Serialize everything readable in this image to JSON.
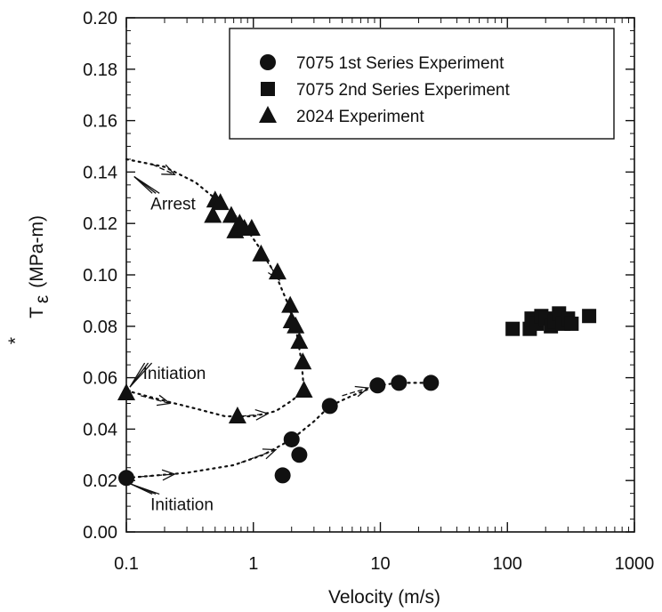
{
  "chart_data": {
    "type": "scatter",
    "xlabel": "Velocity (m/s)",
    "ylabel_main": "T",
    "ylabel_sub": "ε",
    "ylabel_sup": "*",
    "ylabel_unit": "(MPa-m)",
    "xscale": "log",
    "xlim": [
      0.1,
      1000
    ],
    "ylim": [
      0.0,
      0.2
    ],
    "xticks": [
      {
        "value": 0.1,
        "label": "0.1"
      },
      {
        "value": 1,
        "label": "1"
      },
      {
        "value": 10,
        "label": "10"
      },
      {
        "value": 100,
        "label": "100"
      },
      {
        "value": 1000,
        "label": "1000"
      }
    ],
    "yticks": [
      {
        "value": 0.0,
        "label": "0.00"
      },
      {
        "value": 0.02,
        "label": "0.02"
      },
      {
        "value": 0.04,
        "label": "0.04"
      },
      {
        "value": 0.06,
        "label": "0.06"
      },
      {
        "value": 0.08,
        "label": "0.08"
      },
      {
        "value": 0.1,
        "label": "0.10"
      },
      {
        "value": 0.12,
        "label": "0.12"
      },
      {
        "value": 0.14,
        "label": "0.14"
      },
      {
        "value": 0.16,
        "label": "0.16"
      },
      {
        "value": 0.18,
        "label": "0.18"
      },
      {
        "value": 0.2,
        "label": "0.20"
      }
    ],
    "grid": false,
    "legend_position": "top-right",
    "series": [
      {
        "name": "7075 1st Series Experiment",
        "marker": "circle",
        "points": [
          {
            "x": 0.1,
            "y": 0.021
          },
          {
            "x": 1.7,
            "y": 0.022
          },
          {
            "x": 2.0,
            "y": 0.036
          },
          {
            "x": 2.3,
            "y": 0.03
          },
          {
            "x": 4.0,
            "y": 0.049
          },
          {
            "x": 9.5,
            "y": 0.057
          },
          {
            "x": 14,
            "y": 0.058
          },
          {
            "x": 25,
            "y": 0.058
          }
        ]
      },
      {
        "name": "7075 2nd Series Experiment",
        "marker": "square",
        "points": [
          {
            "x": 110,
            "y": 0.079
          },
          {
            "x": 150,
            "y": 0.079
          },
          {
            "x": 155,
            "y": 0.083
          },
          {
            "x": 170,
            "y": 0.081
          },
          {
            "x": 185,
            "y": 0.084
          },
          {
            "x": 200,
            "y": 0.083
          },
          {
            "x": 220,
            "y": 0.08
          },
          {
            "x": 235,
            "y": 0.082
          },
          {
            "x": 255,
            "y": 0.085
          },
          {
            "x": 275,
            "y": 0.081
          },
          {
            "x": 300,
            "y": 0.083
          },
          {
            "x": 320,
            "y": 0.081
          },
          {
            "x": 440,
            "y": 0.084
          }
        ]
      },
      {
        "name": "2024 Experiment",
        "marker": "triangle",
        "points": [
          {
            "x": 0.1,
            "y": 0.054
          },
          {
            "x": 0.48,
            "y": 0.123
          },
          {
            "x": 0.5,
            "y": 0.129
          },
          {
            "x": 0.55,
            "y": 0.128
          },
          {
            "x": 0.67,
            "y": 0.123
          },
          {
            "x": 0.72,
            "y": 0.117
          },
          {
            "x": 0.78,
            "y": 0.12
          },
          {
            "x": 0.85,
            "y": 0.118
          },
          {
            "x": 0.97,
            "y": 0.118
          },
          {
            "x": 0.75,
            "y": 0.045
          },
          {
            "x": 1.15,
            "y": 0.108
          },
          {
            "x": 1.55,
            "y": 0.101
          },
          {
            "x": 1.95,
            "y": 0.088
          },
          {
            "x": 2.0,
            "y": 0.082
          },
          {
            "x": 2.15,
            "y": 0.08
          },
          {
            "x": 2.3,
            "y": 0.074
          },
          {
            "x": 2.45,
            "y": 0.066
          },
          {
            "x": 2.5,
            "y": 0.055
          }
        ]
      }
    ],
    "curves": [
      {
        "name": "2024-arrest-curve",
        "points": [
          {
            "x": 0.1,
            "y": 0.145
          },
          {
            "x": 0.2,
            "y": 0.142
          },
          {
            "x": 0.35,
            "y": 0.136
          },
          {
            "x": 0.55,
            "y": 0.128
          },
          {
            "x": 0.8,
            "y": 0.121
          },
          {
            "x": 1.1,
            "y": 0.111
          },
          {
            "x": 1.5,
            "y": 0.1
          },
          {
            "x": 1.9,
            "y": 0.088
          },
          {
            "x": 2.2,
            "y": 0.077
          },
          {
            "x": 2.4,
            "y": 0.066
          },
          {
            "x": 2.5,
            "y": 0.055
          }
        ]
      },
      {
        "name": "2024-initiation-curve",
        "points": [
          {
            "x": 0.1,
            "y": 0.055
          },
          {
            "x": 0.2,
            "y": 0.051
          },
          {
            "x": 0.35,
            "y": 0.048
          },
          {
            "x": 0.6,
            "y": 0.045
          },
          {
            "x": 1.0,
            "y": 0.045
          },
          {
            "x": 1.5,
            "y": 0.047
          },
          {
            "x": 2.0,
            "y": 0.051
          },
          {
            "x": 2.5,
            "y": 0.055
          }
        ]
      },
      {
        "name": "7075-initiation-curve",
        "points": [
          {
            "x": 0.1,
            "y": 0.021
          },
          {
            "x": 0.3,
            "y": 0.023
          },
          {
            "x": 0.7,
            "y": 0.026
          },
          {
            "x": 1.2,
            "y": 0.03
          },
          {
            "x": 2.0,
            "y": 0.036
          },
          {
            "x": 3.0,
            "y": 0.043
          },
          {
            "x": 4.0,
            "y": 0.049
          },
          {
            "x": 6.0,
            "y": 0.053
          },
          {
            "x": 9.5,
            "y": 0.057
          },
          {
            "x": 14,
            "y": 0.058
          },
          {
            "x": 25,
            "y": 0.058
          }
        ]
      }
    ],
    "direction_arrows": [
      {
        "from": {
          "x": 0.16,
          "y": 0.143
        },
        "to": {
          "x": 0.24,
          "y": 0.139
        }
      },
      {
        "from": {
          "x": 1.25,
          "y": 0.106
        },
        "to": {
          "x": 1.6,
          "y": 0.098
        }
      },
      {
        "from": {
          "x": 0.13,
          "y": 0.053
        },
        "to": {
          "x": 0.22,
          "y": 0.05
        }
      },
      {
        "from": {
          "x": 0.8,
          "y": 0.045
        },
        "to": {
          "x": 1.3,
          "y": 0.046
        }
      },
      {
        "from": {
          "x": 0.13,
          "y": 0.0215
        },
        "to": {
          "x": 0.24,
          "y": 0.0225
        }
      },
      {
        "from": {
          "x": 0.8,
          "y": 0.027
        },
        "to": {
          "x": 1.5,
          "y": 0.032
        }
      },
      {
        "from": {
          "x": 5.0,
          "y": 0.053
        },
        "to": {
          "x": 8.0,
          "y": 0.056
        }
      }
    ],
    "annotations": [
      {
        "text": "Arrest",
        "x": 0.155,
        "y": 0.1255,
        "target": {
          "x": 0.108,
          "y": 0.141
        }
      },
      {
        "text": "Initiation",
        "x": 0.135,
        "y": 0.0595,
        "target": {
          "x": 0.1,
          "y": 0.055
        }
      },
      {
        "text": "Initiation",
        "x": 0.155,
        "y": 0.0085,
        "target": {
          "x": 0.102,
          "y": 0.02
        }
      }
    ]
  }
}
